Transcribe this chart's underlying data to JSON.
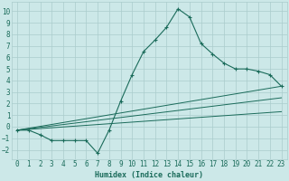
{
  "xlabel": "Humidex (Indice chaleur)",
  "background_color": "#cce8e8",
  "grid_color": "#aacccc",
  "line_color": "#1a6b5a",
  "xlim": [
    -0.5,
    23.5
  ],
  "ylim": [
    -2.8,
    10.8
  ],
  "xticks": [
    0,
    1,
    2,
    3,
    4,
    5,
    6,
    7,
    8,
    9,
    10,
    11,
    12,
    13,
    14,
    15,
    16,
    17,
    18,
    19,
    20,
    21,
    22,
    23
  ],
  "yticks": [
    -2,
    -1,
    0,
    1,
    2,
    3,
    4,
    5,
    6,
    7,
    8,
    9,
    10
  ],
  "series1_x": [
    0,
    1,
    2,
    3,
    4,
    5,
    6,
    7,
    8,
    9,
    10,
    11,
    12,
    13,
    14,
    15,
    16,
    17,
    18,
    19,
    20,
    21,
    22,
    23
  ],
  "series1_y": [
    -0.3,
    -0.3,
    -0.7,
    -1.2,
    -1.2,
    -1.2,
    -1.2,
    -2.3,
    -0.3,
    2.2,
    4.5,
    6.5,
    7.5,
    8.6,
    10.2,
    9.5,
    7.2,
    6.3,
    5.5,
    5.0,
    5.0,
    4.8,
    4.5,
    3.5
  ],
  "series2_x": [
    0,
    23
  ],
  "series2_y": [
    -0.3,
    3.5
  ],
  "series3_x": [
    0,
    23
  ],
  "series3_y": [
    -0.3,
    2.5
  ],
  "series4_x": [
    0,
    23
  ],
  "series4_y": [
    -0.3,
    1.3
  ]
}
